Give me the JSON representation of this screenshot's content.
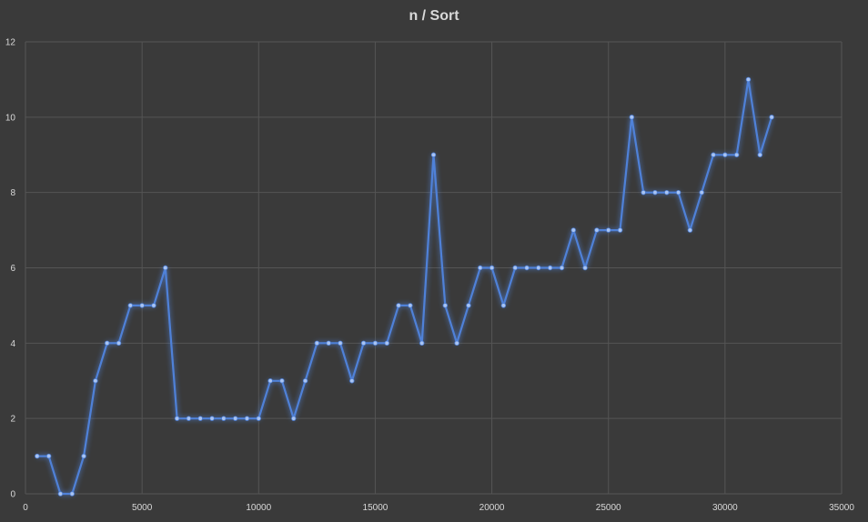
{
  "chart_data": {
    "type": "line",
    "title": "n / Sort",
    "xlabel": "",
    "ylabel": "",
    "xlim": [
      0,
      35000
    ],
    "ylim": [
      0,
      12
    ],
    "x_ticks": [
      "0",
      "5000",
      "10000",
      "15000",
      "20000",
      "25000",
      "30000",
      "35000"
    ],
    "y_ticks": [
      "0",
      "2",
      "4",
      "6",
      "8",
      "10",
      "12"
    ],
    "grid": true,
    "legend": "none",
    "series": [
      {
        "color": "#4f81d8",
        "x": [
          500,
          1000,
          1500,
          2000,
          2500,
          3000,
          3500,
          4000,
          4500,
          5000,
          5500,
          6000,
          6500,
          7000,
          7500,
          8000,
          8500,
          9000,
          9500,
          10000,
          10500,
          11000,
          11500,
          12000,
          12500,
          13000,
          13500,
          14000,
          14500,
          15000,
          15500,
          16000,
          16500,
          17000,
          17500,
          18000,
          18500,
          19000,
          19500,
          20000,
          20500,
          21000,
          21500,
          22000,
          22500,
          23000,
          23500,
          24000,
          24500,
          25000,
          25500,
          26000,
          26500,
          27000,
          27500,
          28000,
          28500,
          29000,
          29500,
          30000,
          30500,
          31000,
          31500,
          32000
        ],
        "y": [
          1,
          1,
          0,
          0,
          1,
          3,
          4,
          4,
          5,
          5,
          5,
          6,
          2,
          2,
          2,
          2,
          2,
          2,
          2,
          2,
          3,
          3,
          2,
          3,
          4,
          4,
          4,
          3,
          4,
          4,
          4,
          5,
          5,
          4,
          9,
          5,
          4,
          5,
          6,
          6,
          5,
          6,
          6,
          6,
          6,
          6,
          7,
          6,
          7,
          7,
          7,
          10,
          8,
          8,
          8,
          8,
          7,
          8,
          9,
          9,
          9,
          11,
          9,
          10
        ]
      }
    ]
  }
}
